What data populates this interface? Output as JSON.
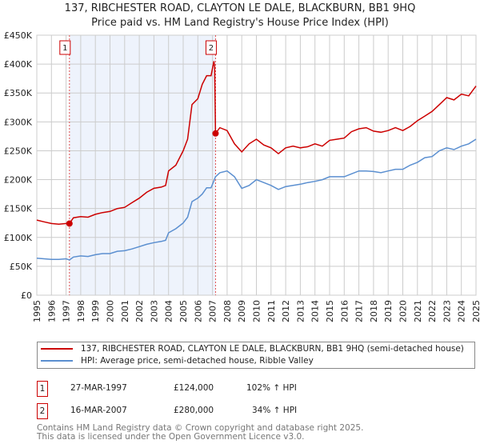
{
  "chart_data": {
    "type": "line",
    "title": "137, RIBCHESTER ROAD, CLAYTON LE DALE, BLACKBURN, BB1 9HQ",
    "subtitle": "Price paid vs. HM Land Registry's House Price Index (HPI)",
    "xlim": [
      1995,
      2025
    ],
    "ylim": [
      0,
      450000
    ],
    "y_ticks": [
      "£0",
      "£50K",
      "£100K",
      "£150K",
      "£200K",
      "£250K",
      "£300K",
      "£350K",
      "£400K",
      "£450K"
    ],
    "x_ticks": [
      "1995",
      "1996",
      "1997",
      "1998",
      "1999",
      "2000",
      "2001",
      "2002",
      "2003",
      "2004",
      "2005",
      "2006",
      "2007",
      "2008",
      "2009",
      "2010",
      "2011",
      "2012",
      "2013",
      "2014",
      "2015",
      "2016",
      "2017",
      "2018",
      "2019",
      "2020",
      "2021",
      "2022",
      "2023",
      "2024",
      "2025"
    ],
    "grid": true,
    "series": [
      {
        "name": "137, RIBCHESTER ROAD, CLAYTON LE DALE, BLACKBURN, BB1 9HQ (semi-detached house)",
        "color": "#cc0000",
        "x": [
          1995,
          1995.5,
          1996,
          1996.5,
          1997,
          1997.23,
          1997.5,
          1998,
          1998.5,
          1999,
          1999.5,
          2000,
          2000.5,
          2001,
          2001.5,
          2002,
          2002.5,
          2003,
          2003.5,
          2003.8,
          2004,
          2004.5,
          2005,
          2005.3,
          2005.6,
          2006,
          2006.3,
          2006.6,
          2006.9,
          2007.1,
          2007.15,
          2007.21,
          2007.5,
          2008,
          2008.5,
          2009,
          2009.5,
          2010,
          2010.5,
          2011,
          2011.5,
          2012,
          2012.5,
          2013,
          2013.5,
          2014,
          2014.5,
          2015,
          2015.5,
          2016,
          2016.5,
          2017,
          2017.5,
          2018,
          2018.5,
          2019,
          2019.5,
          2020,
          2020.5,
          2021,
          2021.5,
          2022,
          2022.5,
          2023,
          2023.5,
          2024,
          2024.5,
          2025
        ],
        "y": [
          130000,
          127000,
          124000,
          123000,
          124000,
          124000,
          134000,
          136000,
          135000,
          140000,
          143000,
          145000,
          150000,
          152000,
          160000,
          168000,
          178000,
          185000,
          187000,
          190000,
          215000,
          225000,
          250000,
          270000,
          330000,
          340000,
          365000,
          380000,
          380000,
          405000,
          395000,
          280000,
          290000,
          285000,
          262000,
          248000,
          262000,
          270000,
          260000,
          255000,
          245000,
          255000,
          258000,
          255000,
          257000,
          262000,
          258000,
          268000,
          270000,
          272000,
          283000,
          288000,
          290000,
          284000,
          282000,
          285000,
          290000,
          285000,
          292000,
          302000,
          310000,
          318000,
          330000,
          342000,
          338000,
          348000,
          345000,
          362000
        ]
      },
      {
        "name": "HPI: Average price, semi-detached house, Ribble Valley",
        "color": "#5b8fd0",
        "x": [
          1995,
          1995.5,
          1996,
          1996.5,
          1997,
          1997.23,
          1997.5,
          1998,
          1998.5,
          1999,
          1999.5,
          2000,
          2000.5,
          2001,
          2001.5,
          2002,
          2002.5,
          2003,
          2003.5,
          2003.8,
          2004,
          2004.5,
          2005,
          2005.3,
          2005.6,
          2006,
          2006.3,
          2006.6,
          2006.9,
          2007.1,
          2007.21,
          2007.5,
          2008,
          2008.5,
          2009,
          2009.5,
          2010,
          2010.5,
          2011,
          2011.5,
          2012,
          2012.5,
          2013,
          2013.5,
          2014,
          2014.5,
          2015,
          2015.5,
          2016,
          2016.5,
          2017,
          2017.5,
          2018,
          2018.5,
          2019,
          2019.5,
          2020,
          2020.5,
          2021,
          2021.5,
          2022,
          2022.5,
          2023,
          2023.5,
          2024,
          2024.5,
          2025
        ],
        "y": [
          64000,
          63000,
          62000,
          62000,
          63000,
          61000,
          66000,
          68000,
          67000,
          70000,
          72000,
          72000,
          76000,
          77000,
          80000,
          84000,
          88000,
          91000,
          93000,
          95000,
          108000,
          115000,
          125000,
          135000,
          162000,
          168000,
          175000,
          186000,
          186000,
          198000,
          205000,
          212000,
          215000,
          205000,
          185000,
          190000,
          200000,
          195000,
          190000,
          183000,
          188000,
          190000,
          192000,
          195000,
          197000,
          200000,
          205000,
          205000,
          205000,
          210000,
          215000,
          215000,
          214000,
          212000,
          215000,
          218000,
          218000,
          225000,
          230000,
          238000,
          240000,
          250000,
          255000,
          252000,
          258000,
          262000,
          270000
        ]
      }
    ],
    "sales": [
      {
        "label": "1",
        "x": 1997.23,
        "price": 124000,
        "date": "27-MAR-1997",
        "price_text": "£124,000",
        "hpi_text": "102% ↑ HPI"
      },
      {
        "label": "2",
        "x": 2007.21,
        "price": 280000,
        "date": "16-MAR-2007",
        "price_text": "£280,000",
        "hpi_text": "34% ↑ HPI"
      }
    ],
    "legend_position": "below"
  },
  "footer": {
    "line1": "Contains HM Land Registry data © Crown copyright and database right 2025.",
    "line2": "This data is licensed under the Open Government Licence v3.0."
  }
}
